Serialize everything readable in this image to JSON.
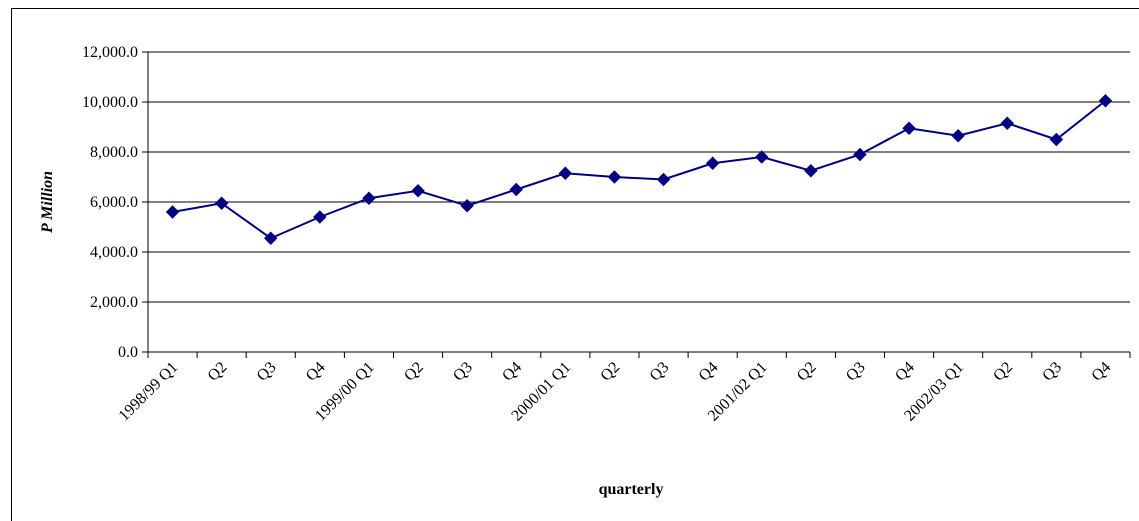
{
  "chart_data": {
    "type": "line",
    "title": "",
    "xlabel": "quarterly",
    "ylabel": "P Million",
    "ylim": [
      0,
      12000
    ],
    "yticks": [
      "0.0",
      "2,000.0",
      "4,000.0",
      "6,000.0",
      "8,000.0",
      "10,000.0",
      "12,000.0"
    ],
    "grid": true,
    "categories": [
      "1998/99 Q1",
      "Q2",
      "Q3",
      "Q4",
      "1999/00 Q1",
      "Q2",
      "Q3",
      "Q4",
      "2000/01 Q1",
      "Q2",
      "Q3",
      "Q4",
      "2001/02 Q1",
      "Q2",
      "Q3",
      "Q4",
      "2002/03 Q1",
      "Q2",
      "Q3",
      "Q4"
    ],
    "series": [
      {
        "color": "#000080",
        "marker": "diamond",
        "values": [
          5600,
          5950,
          4550,
          5400,
          6150,
          6450,
          5850,
          6500,
          7150,
          7000,
          6900,
          7550,
          7800,
          7250,
          7900,
          8950,
          8650,
          9150,
          8500,
          10050
        ]
      }
    ]
  }
}
